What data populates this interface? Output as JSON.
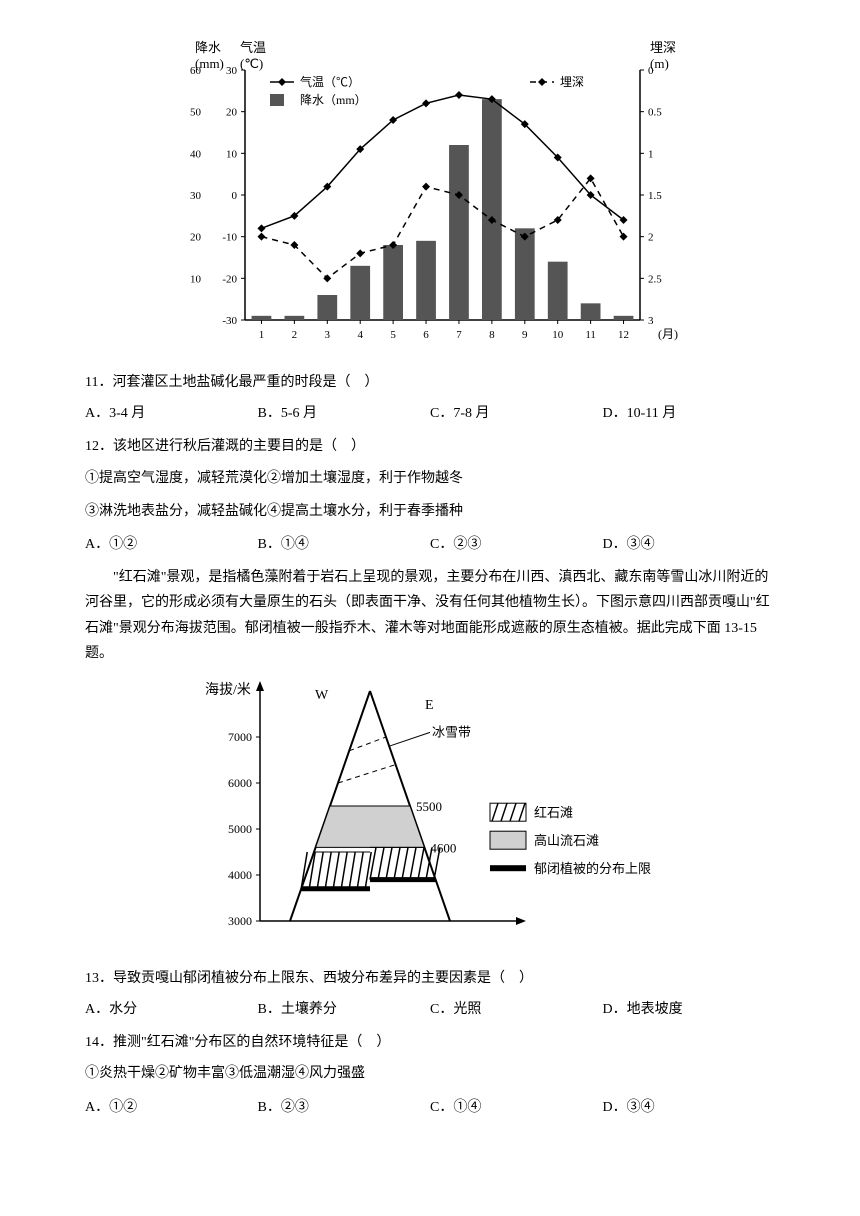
{
  "chart1": {
    "left_axis1": {
      "label": "降水\n(mm)",
      "ticks": [
        10,
        20,
        30,
        40,
        50,
        60
      ],
      "min": 0,
      "max": 60
    },
    "left_axis2": {
      "label": "气温\n(℃)",
      "ticks": [
        -30,
        -20,
        -10,
        0,
        10,
        20,
        30
      ],
      "min": -30,
      "max": 30
    },
    "right_axis": {
      "label": "埋深\n(m)",
      "ticks": [
        0,
        0.5,
        1,
        1.5,
        2,
        2.5,
        3
      ],
      "min": 0,
      "max": 3
    },
    "x_labels": [
      "1",
      "2",
      "3",
      "4",
      "5",
      "6",
      "7",
      "8",
      "9",
      "10",
      "11",
      "12"
    ],
    "x_axis_label": "(月)",
    "legend": {
      "temp": "气温（℃）",
      "precip": "降水（mm）",
      "depth": "埋深"
    },
    "temp_values": [
      -8,
      -5,
      2,
      11,
      18,
      22,
      24,
      23,
      17,
      9,
      0,
      -6
    ],
    "precip_values": [
      1,
      1,
      6,
      13,
      18,
      19,
      42,
      53,
      22,
      14,
      4,
      1
    ],
    "depth_values": [
      2.0,
      2.1,
      2.5,
      2.2,
      2.1,
      1.4,
      1.5,
      1.8,
      2.0,
      1.8,
      1.3,
      2.0
    ],
    "colors": {
      "bar": "#555555",
      "line": "#000000",
      "dash": "#000000",
      "axis": "#000000"
    }
  },
  "chart2": {
    "y_label": "海拔/米",
    "y_ticks": [
      3000,
      4000,
      5000,
      6000,
      7000
    ],
    "label_W": "W",
    "label_E": "E",
    "snow_label": "冰雪带",
    "anno_5500": "5500",
    "anno_4600": "4600",
    "legend": {
      "red": "红石滩",
      "flow": "高山流石滩",
      "closed": "郁闭植被的分布上限"
    },
    "colors": {
      "line": "#000000",
      "fill_gray": "#d0d0d0",
      "hatch": "#000000"
    }
  },
  "q11": {
    "stem": "11．河套灌区土地盐碱化最严重的时段是（　）",
    "a": "A．3-4 月",
    "b": "B．5-6 月",
    "c": "C．7-8 月",
    "d": "D．10-11 月"
  },
  "q12": {
    "stem": "12．该地区进行秋后灌溉的主要目的是（　）",
    "l1": "①提高空气湿度，减轻荒漠化②增加土壤湿度，利于作物越冬",
    "l2": "③淋洗地表盐分，减轻盐碱化④提高土壤水分，利于春季播种",
    "a": "A．①②",
    "b": "B．①④",
    "c": "C．②③",
    "d": "D．③④"
  },
  "passage": "\"红石滩\"景观，是指橘色藻附着于岩石上呈现的景观，主要分布在川西、滇西北、藏东南等雪山冰川附近的河谷里，它的形成必须有大量原生的石头（即表面干净、没有任何其他植物生长）。下图示意四川西部贡嘎山\"红石滩\"景观分布海拔范围。郁闭植被一般指乔木、灌木等对地面能形成遮蔽的原生态植被。据此完成下面 13-15 题。",
  "q13": {
    "stem": "13．导致贡嘎山郁闭植被分布上限东、西坡分布差异的主要因素是（　）",
    "a": "A．水分",
    "b": "B．土壤养分",
    "c": "C．光照",
    "d": "D．地表坡度"
  },
  "q14": {
    "stem": "14．推测\"红石滩\"分布区的自然环境特征是（　）",
    "l1": "①炎热干燥②矿物丰富③低温潮湿④风力强盛",
    "a": "A．①②",
    "b": "B．②③",
    "c": "C．①④",
    "d": "D．③④"
  }
}
